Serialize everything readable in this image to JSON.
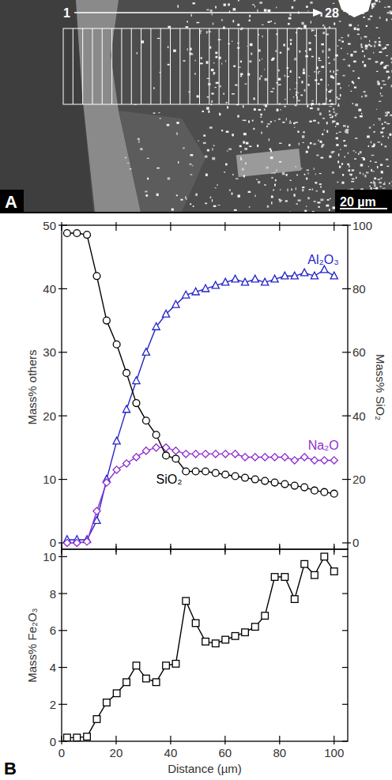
{
  "panel_a": {
    "label": "A",
    "start": "1",
    "end": "28",
    "scale_bar": "20 µm"
  },
  "panel_b": {
    "label": "B"
  },
  "chart_data": [
    {
      "type": "line",
      "x": [
        2.0,
        5.6,
        9.3,
        12.9,
        16.5,
        20.2,
        23.8,
        27.4,
        31.0,
        34.7,
        38.3,
        41.9,
        45.6,
        49.2,
        52.8,
        56.5,
        60.1,
        63.7,
        67.3,
        71.0,
        74.6,
        78.2,
        81.9,
        85.5,
        89.1,
        92.8,
        96.4,
        100.0
      ],
      "xlim": [
        0,
        105
      ],
      "xticks": [
        0,
        20,
        40,
        60,
        80,
        100
      ],
      "ylim": [
        -1,
        50
      ],
      "yticks": [
        0,
        10,
        20,
        30,
        40,
        50
      ],
      "y2lim": [
        -2,
        100
      ],
      "y2ticks": [
        0,
        20,
        40,
        60,
        80,
        100
      ],
      "y_label": "Mass% others",
      "y2_label": "Mass% SiO₂",
      "tick_labels": "y",
      "series": [
        {
          "name": "Al₂O₃",
          "color": "#2424c8",
          "marker": "triangle",
          "values": [
            0.5,
            0.5,
            0.5,
            3.5,
            10,
            16,
            21,
            25.5,
            30,
            34,
            36,
            37.5,
            39,
            39.5,
            40,
            40.5,
            41,
            41.5,
            41,
            41.5,
            41,
            41.5,
            42,
            42,
            42.5,
            42,
            43,
            42
          ]
        },
        {
          "name": "Na₂O",
          "color": "#8e2dd0",
          "marker": "diamond",
          "values": [
            0,
            0,
            0.2,
            5,
            9.5,
            11.5,
            12.5,
            13.5,
            14.5,
            15,
            15,
            14.5,
            14,
            14,
            14,
            14,
            14,
            14,
            13.5,
            13.5,
            13.5,
            13.5,
            13.5,
            13,
            13.5,
            13,
            13,
            13
          ]
        },
        {
          "name": "SiO₂",
          "color": "#000000",
          "marker": "circle",
          "axis": "y2",
          "values": [
            97.5,
            97.5,
            97,
            84,
            70,
            62.5,
            53.5,
            44,
            38.5,
            34,
            27.5,
            26.5,
            22.5,
            22.5,
            22.5,
            22,
            21.5,
            21,
            20.5,
            20,
            19.5,
            19,
            18.5,
            18,
            17.5,
            16.5,
            16,
            15.5
          ]
        }
      ]
    },
    {
      "type": "line",
      "x": [
        2.0,
        5.6,
        9.3,
        12.9,
        16.5,
        20.2,
        23.8,
        27.4,
        31.0,
        34.7,
        38.3,
        41.9,
        45.6,
        49.2,
        52.8,
        56.5,
        60.1,
        63.7,
        67.3,
        71.0,
        74.6,
        78.2,
        81.9,
        85.5,
        89.1,
        92.8,
        96.4,
        100.0
      ],
      "xlim": [
        0,
        105
      ],
      "xticks": [
        0,
        20,
        40,
        60,
        80,
        100
      ],
      "ylim": [
        0,
        10.4
      ],
      "yticks": [
        0,
        2,
        4,
        6,
        8,
        10
      ],
      "x_label": "Distance (µm)",
      "y_label": "Mass% Fe₂O₃",
      "series": [
        {
          "color": "#000000",
          "marker": "square",
          "values": [
            0.2,
            0.2,
            0.25,
            1.2,
            2.1,
            2.6,
            3.2,
            4.1,
            3.4,
            3.2,
            4.1,
            4.2,
            7.6,
            6.4,
            5.4,
            5.3,
            5.5,
            5.7,
            5.9,
            6.2,
            6.8,
            8.9,
            8.9,
            7.7,
            9.6,
            9.0,
            10.0,
            9.2
          ]
        }
      ]
    }
  ]
}
